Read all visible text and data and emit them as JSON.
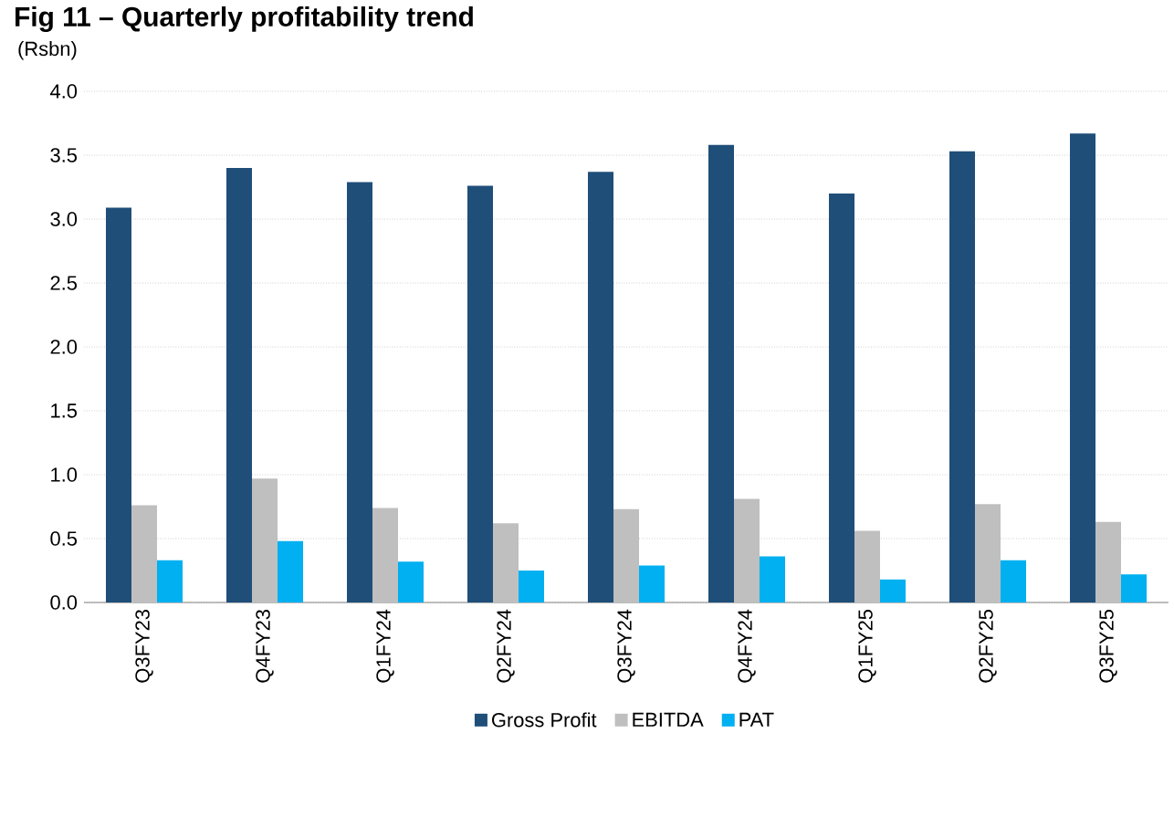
{
  "chart_data": {
    "type": "bar",
    "title": "Fig 11 – Quarterly profitability trend",
    "ylabel": "(Rsbn)",
    "categories": [
      "Q3FY23",
      "Q4FY23",
      "Q1FY24",
      "Q2FY24",
      "Q3FY24",
      "Q4FY24",
      "Q1FY25",
      "Q2FY25",
      "Q3FY25"
    ],
    "series": [
      {
        "name": "Gross Profit",
        "color": "#1f4e79",
        "values": [
          3.09,
          3.4,
          3.29,
          3.26,
          3.37,
          3.58,
          3.2,
          3.53,
          3.67
        ]
      },
      {
        "name": "EBITDA",
        "color": "#bfbfbf",
        "values": [
          0.76,
          0.97,
          0.74,
          0.62,
          0.73,
          0.81,
          0.56,
          0.77,
          0.63
        ]
      },
      {
        "name": "PAT",
        "color": "#00b0f0",
        "values": [
          0.33,
          0.48,
          0.32,
          0.25,
          0.29,
          0.36,
          0.18,
          0.33,
          0.22
        ]
      }
    ],
    "ylim": [
      0,
      4
    ],
    "yticks": [
      {
        "value": 0,
        "label": "0.0"
      },
      {
        "value": 0.5,
        "label": "0.5"
      },
      {
        "value": 1,
        "label": "1.0"
      },
      {
        "value": 1.5,
        "label": "1.5"
      },
      {
        "value": 2,
        "label": "2.0"
      },
      {
        "value": 2.5,
        "label": "2.5"
      },
      {
        "value": 3,
        "label": "3.0"
      },
      {
        "value": 3.5,
        "label": "3.5"
      },
      {
        "value": 4,
        "label": "4.0"
      }
    ],
    "grid": "y",
    "legend": "bottom"
  }
}
